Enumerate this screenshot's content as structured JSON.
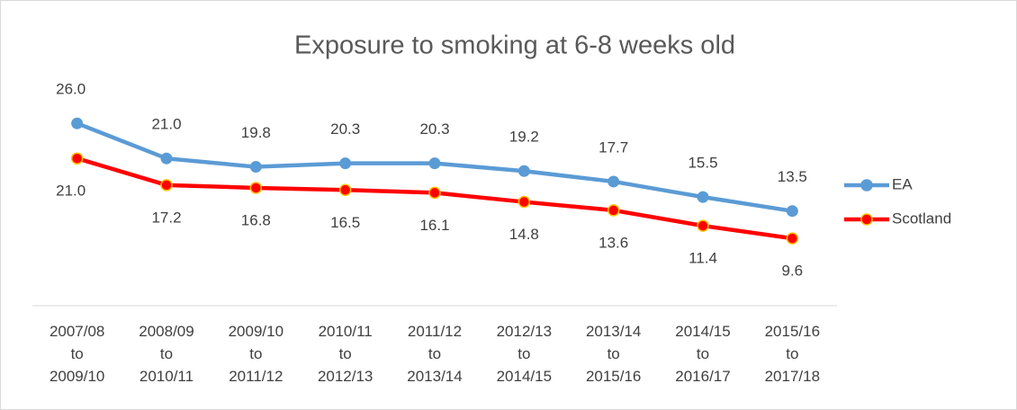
{
  "chart_data": {
    "type": "line",
    "title": "Exposure to smoking at 6-8 weeks old",
    "categories": [
      "2007/08 to 2009/10",
      "2008/09 to 2010/11",
      "2009/10 to 2011/12",
      "2010/11 to 2012/13",
      "2011/12 to 2013/14",
      "2012/13 to 2014/15",
      "2013/14 to 2015/16",
      "2014/15 to 2016/17",
      "2015/16 to 2017/18"
    ],
    "series": [
      {
        "name": "EA",
        "color": "#5b9bd5",
        "values": [
          26,
          21,
          19.8,
          20.3,
          20.3,
          19.2,
          17.7,
          15.5,
          13.5
        ],
        "value_labels": [
          "26.0",
          "21.0",
          "19.8",
          "20.3",
          "20.3",
          "19.2",
          "17.7",
          "15.5",
          "13.5"
        ]
      },
      {
        "name": "Scotland",
        "color": "#ff0000",
        "values": [
          21,
          17.2,
          16.8,
          16.5,
          16.1,
          14.8,
          13.6,
          11.4,
          9.6
        ],
        "value_labels": [
          "21.0",
          "17.2",
          "16.8",
          "16.5",
          "16.1",
          "14.8",
          "13.6",
          "11.4",
          "9.6"
        ]
      }
    ],
    "ylim": [
      0,
      30
    ],
    "legend": "right"
  }
}
